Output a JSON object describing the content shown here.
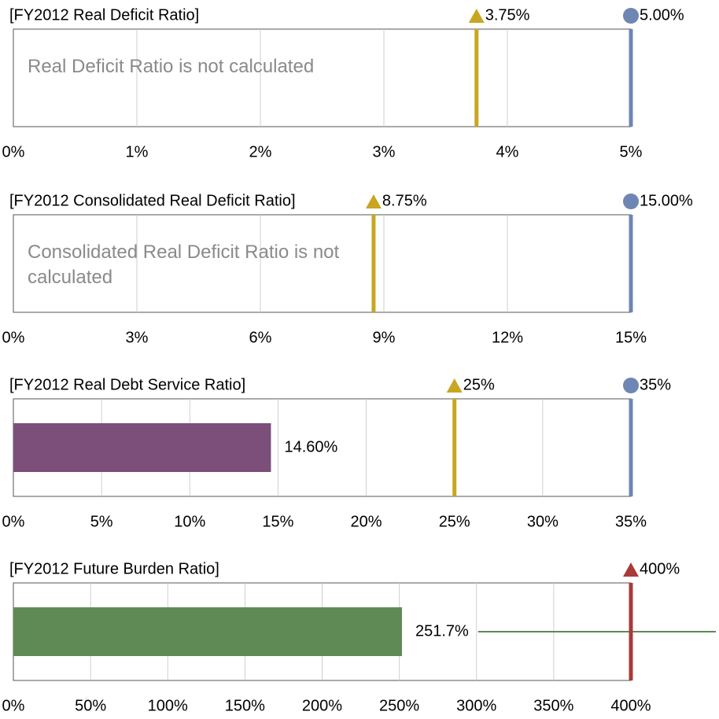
{
  "chart_data": [
    {
      "type": "bar",
      "title": "[FY2012 Real Deficit Ratio]",
      "xlim": [
        0,
        5
      ],
      "xticks": [
        {
          "value": 0,
          "label": "0%"
        },
        {
          "value": 1,
          "label": "1%"
        },
        {
          "value": 2,
          "label": "2%"
        },
        {
          "value": 3,
          "label": "3%"
        },
        {
          "value": 4,
          "label": "4%"
        },
        {
          "value": 5,
          "label": "5%"
        }
      ],
      "grid": true,
      "thresholds": [
        {
          "value": 3.75,
          "label": "3.75%",
          "color": "#c9a622",
          "shape": "triangle"
        },
        {
          "value": 5,
          "label": "5.00%",
          "color": "#6d86b3",
          "shape": "circle"
        }
      ],
      "annotation": "Real Deficit Ratio is not calculated"
    },
    {
      "type": "bar",
      "title": "[FY2012 Consolidated Real Deficit Ratio]",
      "xlim": [
        0,
        15
      ],
      "xticks": [
        {
          "value": 0,
          "label": "0%"
        },
        {
          "value": 3,
          "label": "3%"
        },
        {
          "value": 6,
          "label": "6%"
        },
        {
          "value": 9,
          "label": "9%"
        },
        {
          "value": 12,
          "label": "12%"
        },
        {
          "value": 15,
          "label": "15%"
        }
      ],
      "grid": true,
      "thresholds": [
        {
          "value": 8.75,
          "label": "8.75%",
          "color": "#c9a622",
          "shape": "triangle"
        },
        {
          "value": 15,
          "label": "15.00%",
          "color": "#6d86b3",
          "shape": "circle"
        }
      ],
      "annotation": "Consolidated Real Deficit Ratio is not calculated"
    },
    {
      "type": "bar",
      "title": "[FY2012 Real Debt Service Ratio]",
      "xlim": [
        0,
        35
      ],
      "xticks": [
        {
          "value": 0,
          "label": "0%"
        },
        {
          "value": 5,
          "label": "5%"
        },
        {
          "value": 10,
          "label": "10%"
        },
        {
          "value": 15,
          "label": "15%"
        },
        {
          "value": 20,
          "label": "20%"
        },
        {
          "value": 25,
          "label": "25%"
        },
        {
          "value": 30,
          "label": "30%"
        },
        {
          "value": 35,
          "label": "35%"
        }
      ],
      "grid": true,
      "thresholds": [
        {
          "value": 25,
          "label": "25%",
          "color": "#c9a622",
          "shape": "triangle"
        },
        {
          "value": 35,
          "label": "35%",
          "color": "#6d86b3",
          "shape": "circle"
        }
      ],
      "values": [
        14.6
      ],
      "value_labels": [
        "14.60%"
      ],
      "color": "#7b4f79"
    },
    {
      "type": "bar",
      "title": "[FY2012 Future Burden Ratio]",
      "xlim": [
        0,
        400
      ],
      "xticks": [
        {
          "value": 0,
          "label": "0%"
        },
        {
          "value": 50,
          "label": "50%"
        },
        {
          "value": 100,
          "label": "100%"
        },
        {
          "value": 150,
          "label": "150%"
        },
        {
          "value": 200,
          "label": "200%"
        },
        {
          "value": 250,
          "label": "250%"
        },
        {
          "value": 300,
          "label": "300%"
        },
        {
          "value": 350,
          "label": "350%"
        },
        {
          "value": 400,
          "label": "400%"
        }
      ],
      "grid": true,
      "thresholds": [
        {
          "value": 400,
          "label": "400%",
          "color": "#a83a3a",
          "shape": "triangle"
        }
      ],
      "values": [
        251.7
      ],
      "value_labels": [
        "251.7%"
      ],
      "color": "#5f8a55"
    }
  ]
}
